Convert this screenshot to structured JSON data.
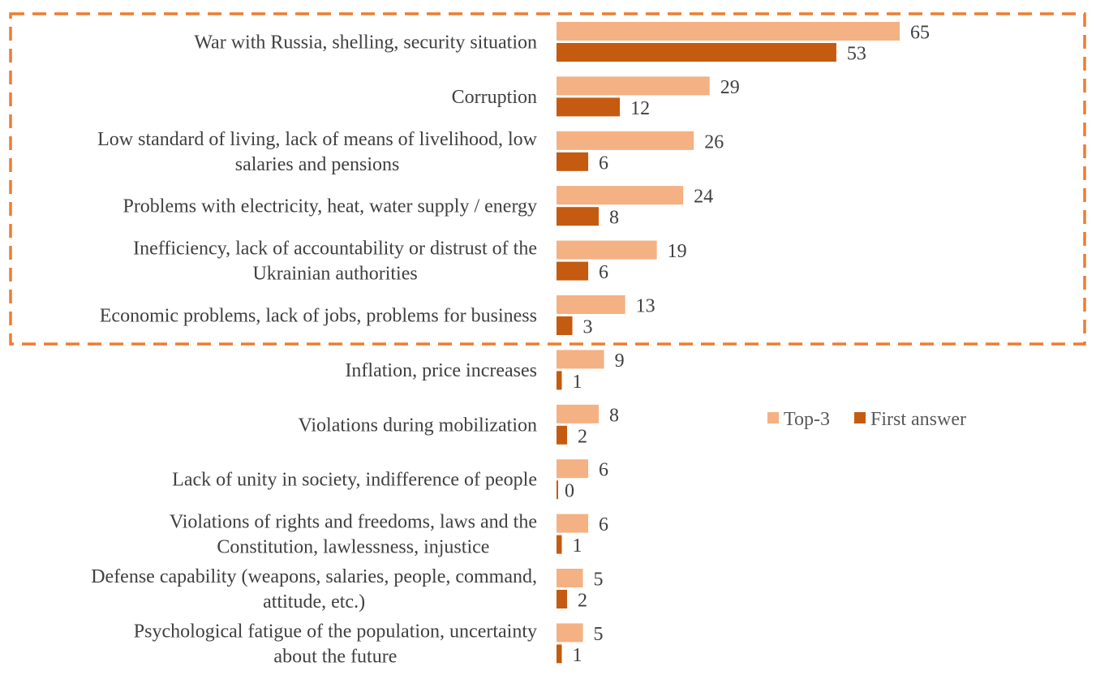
{
  "chart_data": {
    "type": "bar",
    "orientation": "horizontal",
    "title": "",
    "xlabel": "",
    "ylabel": "",
    "xlim": [
      0,
      65
    ],
    "grid": false,
    "legend_position": "right-middle",
    "categories": [
      [
        "War with Russia, shelling, security situation"
      ],
      [
        "Corruption"
      ],
      [
        "Low standard of living, lack of means of livelihood, low",
        "salaries and pensions"
      ],
      [
        "Problems with electricity, heat, water supply / energy"
      ],
      [
        "Inefficiency, lack of accountability or distrust of the",
        "Ukrainian authorities"
      ],
      [
        "Economic problems, lack of jobs, problems for business"
      ],
      [
        "Inflation, price increases"
      ],
      [
        "Violations during mobilization"
      ],
      [
        "Lack of unity in society, indifference of people"
      ],
      [
        "Violations of rights and freedoms, laws and the",
        "Constitution, lawlessness, injustice"
      ],
      [
        "Defense capability (weapons, salaries, people, command,",
        "attitude, etc.)"
      ],
      [
        "Psychological fatigue of the population, uncertainty",
        "about the future"
      ]
    ],
    "series": [
      {
        "name": "Top-3",
        "color": "#F4B183",
        "values": [
          65,
          29,
          26,
          24,
          19,
          13,
          9,
          8,
          6,
          6,
          5,
          5
        ]
      },
      {
        "name": "First answer",
        "color": "#C55A11",
        "values": [
          53,
          12,
          6,
          8,
          6,
          3,
          1,
          2,
          0,
          1,
          2,
          1
        ]
      }
    ],
    "annotations": [
      {
        "type": "dashed-box",
        "color": "#ED7D31",
        "highlights_categories": [
          0,
          1,
          2,
          3,
          4,
          5
        ]
      }
    ]
  }
}
